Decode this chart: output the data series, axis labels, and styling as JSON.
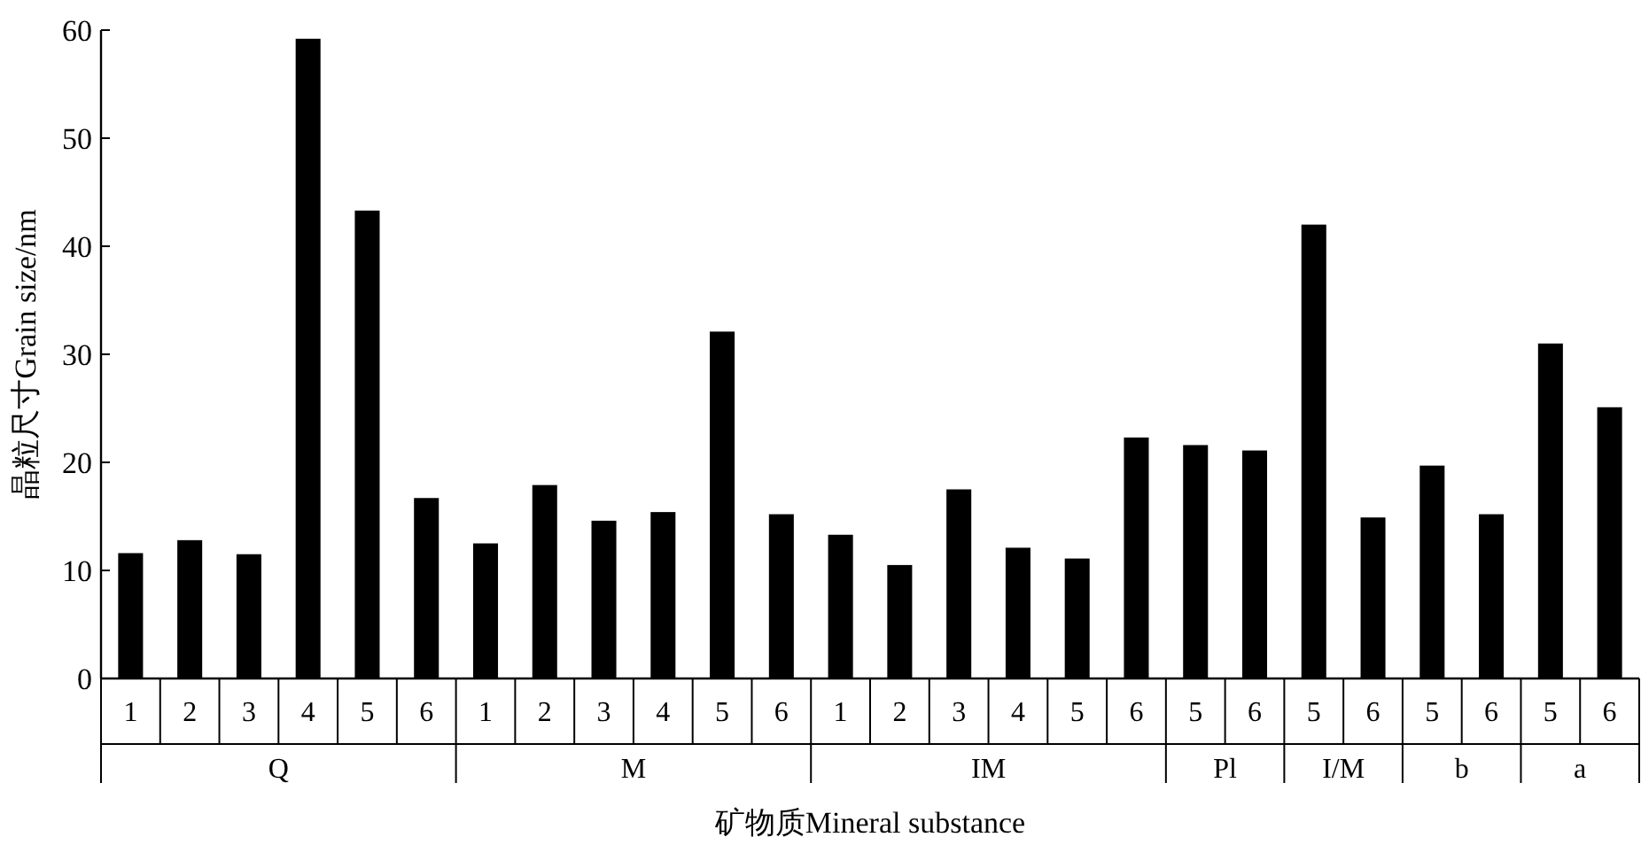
{
  "chart_data": {
    "type": "bar",
    "ylabel": "晶粒尺寸Grain size/nm",
    "xlabel": "矿物质Mineral substance",
    "categories": [
      "1",
      "2",
      "3",
      "4",
      "5",
      "6",
      "1",
      "2",
      "3",
      "4",
      "5",
      "6",
      "1",
      "2",
      "3",
      "4",
      "5",
      "6",
      "5",
      "6",
      "5",
      "6",
      "5",
      "6",
      "5",
      "6"
    ],
    "values": [
      11.6,
      12.8,
      11.5,
      59.2,
      43.3,
      16.7,
      12.5,
      17.9,
      14.6,
      15.4,
      32.1,
      15.2,
      13.3,
      10.5,
      17.5,
      12.1,
      11.1,
      22.3,
      21.6,
      21.1,
      42.0,
      14.9,
      19.7,
      15.2,
      31.0,
      25.1
    ],
    "color": "#000000",
    "ylim": [
      0,
      60
    ],
    "yticks": [
      0,
      10,
      20,
      30,
      40,
      50,
      60
    ],
    "annotations": [
      "Q",
      "M",
      "IM",
      "Pl",
      "I/M",
      "b",
      "a"
    ]
  }
}
